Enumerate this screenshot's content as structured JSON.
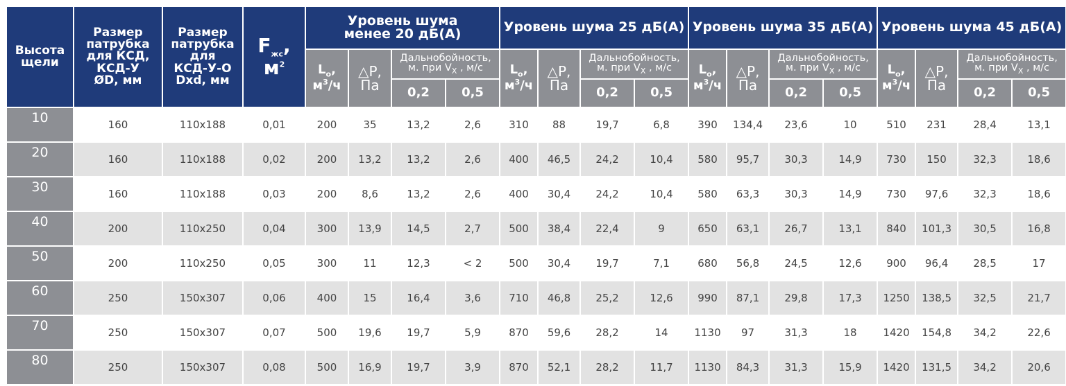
{
  "headers": {
    "height": [
      "Высота",
      "щели"
    ],
    "ksd_size": [
      "Размер",
      "патрубка",
      "для КСД,",
      "КСД-У",
      "ØD, мм"
    ],
    "ksdu_size": [
      "Размер",
      "патрубка",
      "для",
      "КСД-У-О",
      "Dxd, мм"
    ],
    "area_main": "F",
    "area_sub": "жс",
    "area_sep": ",",
    "area_unit_main": "м",
    "area_unit_sup": "2",
    "group_lt20_line1": "Уровень шума",
    "group_lt20_line2": "менее 20 дБ(А)",
    "group_25": "Уровень шума 25 дБ(А)",
    "group_35": "Уровень шума 35 дБ(А)",
    "group_45": "Уровень шума 45 дБ(А)",
    "flow_main": "L",
    "flow_sub": "о",
    "flow_sep": ",",
    "flow_unit_main": "м",
    "flow_unit_sup": "3",
    "flow_unit_tail": "/ч",
    "pressure_line1": "△P,",
    "pressure_line2": "Па",
    "range_line1": "Дальнобойность,",
    "range_line2_pre": "м. при V",
    "range_line2_sub": "X",
    "range_line2_post": " , м/с",
    "speed_1": "0,2",
    "speed_2": "0,5"
  },
  "rows": [
    [
      "10",
      "160",
      "110x188",
      "0,01",
      "200",
      "35",
      "13,2",
      "2,6",
      "310",
      "88",
      "19,7",
      "6,8",
      "390",
      "134,4",
      "23,6",
      "10",
      "510",
      "231",
      "28,4",
      "13,1"
    ],
    [
      "20",
      "160",
      "110x188",
      "0,02",
      "200",
      "13,2",
      "13,2",
      "2,6",
      "400",
      "46,5",
      "24,2",
      "10,4",
      "580",
      "95,7",
      "30,3",
      "14,9",
      "730",
      "150",
      "32,3",
      "18,6"
    ],
    [
      "30",
      "160",
      "110x188",
      "0,03",
      "200",
      "8,6",
      "13,2",
      "2,6",
      "400",
      "30,4",
      "24,2",
      "10,4",
      "580",
      "63,3",
      "30,3",
      "14,9",
      "730",
      "97,6",
      "32,3",
      "18,6"
    ],
    [
      "40",
      "200",
      "110x250",
      "0,04",
      "300",
      "13,9",
      "14,5",
      "2,7",
      "500",
      "38,4",
      "22,4",
      "9",
      "650",
      "63,1",
      "26,7",
      "13,1",
      "840",
      "101,3",
      "30,5",
      "16,8"
    ],
    [
      "50",
      "200",
      "110x250",
      "0,05",
      "300",
      "11",
      "12,3",
      "< 2",
      "500",
      "30,4",
      "19,7",
      "7,1",
      "680",
      "56,8",
      "24,5",
      "12,6",
      "900",
      "96,4",
      "28,5",
      "17"
    ],
    [
      "60",
      "250",
      "150x307",
      "0,06",
      "400",
      "15",
      "16,4",
      "3,6",
      "710",
      "46,8",
      "25,2",
      "12,6",
      "990",
      "87,1",
      "29,8",
      "17,3",
      "1250",
      "138,5",
      "32,5",
      "21,7"
    ],
    [
      "70",
      "250",
      "150x307",
      "0,07",
      "500",
      "19,6",
      "19,7",
      "5,9",
      "870",
      "59,6",
      "28,2",
      "14",
      "1130",
      "97",
      "31,3",
      "18",
      "1420",
      "154,8",
      "34,2",
      "22,6"
    ],
    [
      "80",
      "250",
      "150x307",
      "0,08",
      "500",
      "16,9",
      "19,7",
      "3,9",
      "870",
      "52,1",
      "28,2",
      "11,7",
      "1130",
      "84,3",
      "31,3",
      "15,9",
      "1420",
      "131,5",
      "34,2",
      "20,6"
    ]
  ],
  "colors": {
    "header_blue": "#1f3b7a",
    "subheader_gray": "#8d8f94",
    "row_alt_gray": "#e2e2e2",
    "text": "#444444"
  }
}
